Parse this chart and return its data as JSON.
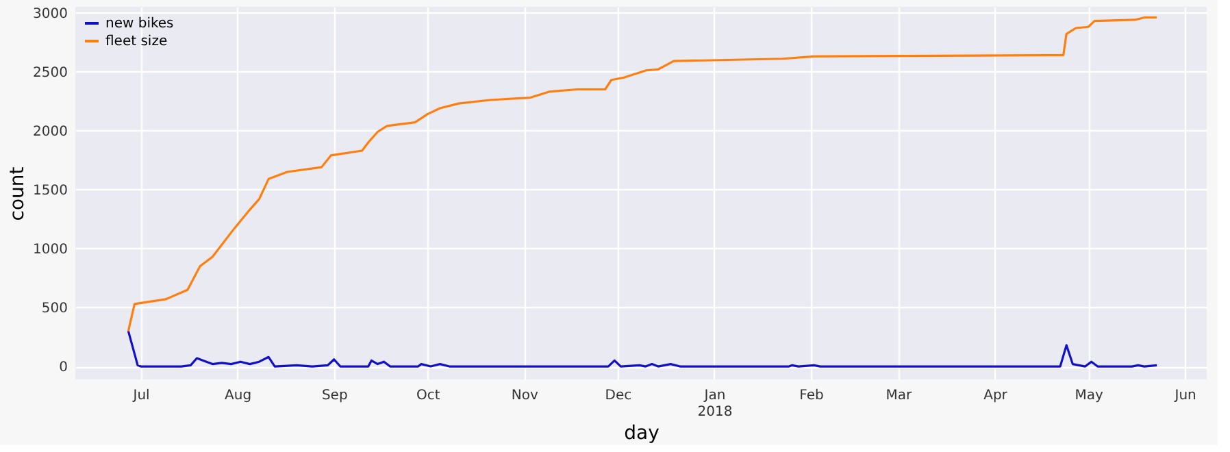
{
  "chart_data": {
    "type": "line",
    "xlabel": "day",
    "ylabel": "count",
    "xlim": [
      "2017-06-10",
      "2018-06-08"
    ],
    "xticks": [
      {
        "value": "2017-07-01",
        "label": "Jul"
      },
      {
        "value": "2017-08-01",
        "label": "Aug"
      },
      {
        "value": "2017-09-01",
        "label": "Sep"
      },
      {
        "value": "2017-10-01",
        "label": "Oct"
      },
      {
        "value": "2017-11-01",
        "label": "Nov"
      },
      {
        "value": "2017-12-01",
        "label": "Dec"
      },
      {
        "value": "2018-01-01",
        "label": "Jan\n2018"
      },
      {
        "value": "2018-02-01",
        "label": "Feb"
      },
      {
        "value": "2018-03-01",
        "label": "Mar"
      },
      {
        "value": "2018-04-01",
        "label": "Apr"
      },
      {
        "value": "2018-05-01",
        "label": "May"
      },
      {
        "value": "2018-06-01",
        "label": "Jun"
      }
    ],
    "ylim": [
      -110,
      3050
    ],
    "yticks": [
      0,
      500,
      1000,
      1500,
      2000,
      2500,
      3000
    ],
    "grid": true,
    "legend": "top left",
    "line_style": "solid",
    "marker": "none",
    "series": [
      {
        "name": "new bikes",
        "color": "#1010c8",
        "x": [
          "2017-06-27",
          "2017-06-30",
          "2017-07-01",
          "2017-07-14",
          "2017-07-17",
          "2017-07-19",
          "2017-07-21",
          "2017-07-24",
          "2017-07-27",
          "2017-07-30",
          "2017-08-02",
          "2017-08-05",
          "2017-08-08",
          "2017-08-11",
          "2017-08-13",
          "2017-08-20",
          "2017-08-25",
          "2017-08-30",
          "2017-09-01",
          "2017-09-03",
          "2017-09-12",
          "2017-09-13",
          "2017-09-15",
          "2017-09-17",
          "2017-09-19",
          "2017-09-28",
          "2017-09-29",
          "2017-10-02",
          "2017-10-05",
          "2017-10-08",
          "2017-10-20",
          "2017-11-01",
          "2017-11-10",
          "2017-11-28",
          "2017-11-30",
          "2017-12-02",
          "2017-12-08",
          "2017-12-10",
          "2017-12-12",
          "2017-12-14",
          "2017-12-18",
          "2017-12-21",
          "2018-01-25",
          "2018-01-26",
          "2018-01-28",
          "2018-02-02",
          "2018-02-04",
          "2018-04-22",
          "2018-04-24",
          "2018-04-26",
          "2018-04-30",
          "2018-05-02",
          "2018-05-04",
          "2018-05-15",
          "2018-05-17",
          "2018-05-19",
          "2018-05-23"
        ],
        "values": [
          300,
          10,
          0,
          0,
          10,
          70,
          50,
          20,
          30,
          20,
          40,
          20,
          40,
          80,
          0,
          10,
          0,
          10,
          60,
          0,
          0,
          50,
          20,
          40,
          0,
          0,
          20,
          0,
          20,
          0,
          0,
          0,
          0,
          0,
          50,
          0,
          10,
          0,
          20,
          0,
          20,
          0,
          0,
          10,
          0,
          10,
          0,
          0,
          180,
          20,
          0,
          40,
          0,
          0,
          10,
          0,
          10
        ]
      },
      {
        "name": "fleet size",
        "color": "#ff7f0e",
        "x": [
          "2017-06-27",
          "2017-06-29",
          "2017-07-09",
          "2017-07-16",
          "2017-07-20",
          "2017-07-24",
          "2017-07-31",
          "2017-08-05",
          "2017-08-08",
          "2017-08-11",
          "2017-08-17",
          "2017-08-28",
          "2017-08-31",
          "2017-09-10",
          "2017-09-12",
          "2017-09-15",
          "2017-09-18",
          "2017-09-27",
          "2017-10-01",
          "2017-10-05",
          "2017-10-11",
          "2017-10-21",
          "2017-11-03",
          "2017-11-09",
          "2017-11-18",
          "2017-11-27",
          "2017-11-29",
          "2017-12-03",
          "2017-12-10",
          "2017-12-14",
          "2017-12-19",
          "2018-01-23",
          "2018-02-02",
          "2018-04-23",
          "2018-04-24",
          "2018-04-27",
          "2018-05-01",
          "2018-05-03",
          "2018-05-16",
          "2018-05-19",
          "2018-05-23"
        ],
        "values": [
          300,
          530,
          570,
          650,
          850,
          930,
          1170,
          1330,
          1420,
          1590,
          1650,
          1690,
          1790,
          1830,
          1900,
          1990,
          2040,
          2070,
          2140,
          2190,
          2230,
          2260,
          2280,
          2330,
          2350,
          2350,
          2430,
          2450,
          2510,
          2520,
          2590,
          2610,
          2630,
          2640,
          2820,
          2870,
          2880,
          2930,
          2940,
          2960,
          2960
        ]
      }
    ]
  }
}
